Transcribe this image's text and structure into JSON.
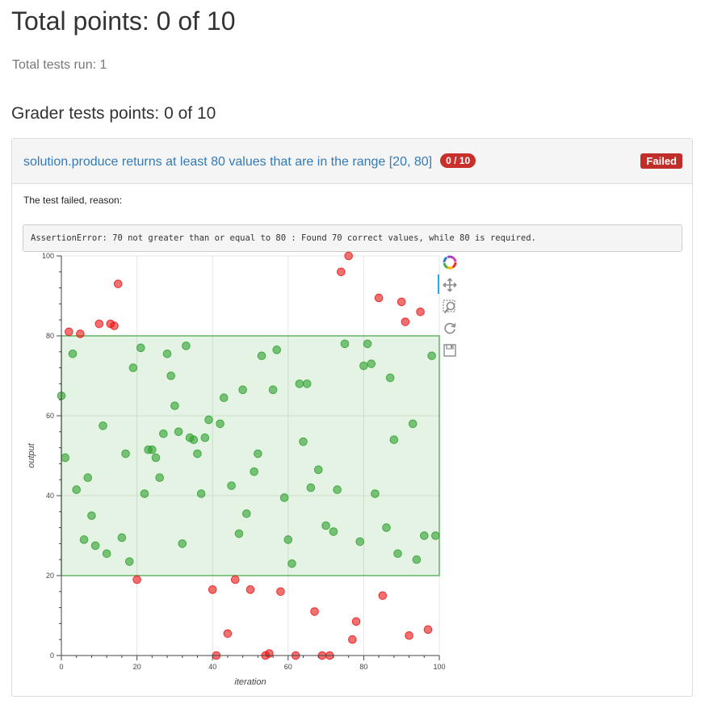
{
  "header": {
    "title": "Total points: 0 of 10",
    "tests_run": "Total tests run: 1",
    "section_title": "Grader tests points: 0 of 10"
  },
  "test": {
    "name": "solution.produce returns at least 80 values that are in the range [20, 80]",
    "score": "0 / 10",
    "status": "Failed",
    "reason_label": "The test failed, reason:",
    "error": "AssertionError: 70 not greater than or equal to 80 : Found 70 correct values, while 80 is required."
  },
  "toolbar": {
    "tools": [
      "bokeh-logo-icon",
      "pan-icon",
      "box-zoom-icon",
      "reset-icon",
      "save-icon"
    ]
  },
  "colors": {
    "in_range": "#2ca02c",
    "out_of_range": "#e81010",
    "band": "#2ca02c",
    "link": "#337ab7",
    "danger": "#c12e2a"
  },
  "chart_data": {
    "type": "scatter",
    "xlabel": "iteration",
    "ylabel": "output",
    "xlim": [
      0,
      100
    ],
    "ylim": [
      0,
      100
    ],
    "x_ticks": [
      0,
      20,
      40,
      60,
      80,
      100
    ],
    "y_ticks": [
      0,
      20,
      40,
      60,
      80,
      100
    ],
    "band": [
      20,
      80
    ],
    "grid": true,
    "points": [
      [
        0,
        65
      ],
      [
        1,
        49.5
      ],
      [
        2,
        81
      ],
      [
        3,
        75.5
      ],
      [
        4,
        41.5
      ],
      [
        5,
        80.5
      ],
      [
        6,
        29
      ],
      [
        7,
        44.5
      ],
      [
        8,
        35
      ],
      [
        9,
        27.5
      ],
      [
        10,
        83
      ],
      [
        11,
        57.5
      ],
      [
        12,
        25.5
      ],
      [
        13,
        83
      ],
      [
        14,
        82.5
      ],
      [
        15,
        93
      ],
      [
        16,
        29.5
      ],
      [
        17,
        50.5
      ],
      [
        18,
        23.5
      ],
      [
        19,
        72
      ],
      [
        20,
        19
      ],
      [
        21,
        77
      ],
      [
        22,
        40.5
      ],
      [
        23,
        51.5
      ],
      [
        24,
        51.5
      ],
      [
        25,
        49.5
      ],
      [
        26,
        44.5
      ],
      [
        27,
        55.5
      ],
      [
        28,
        75.5
      ],
      [
        29,
        70
      ],
      [
        30,
        62.5
      ],
      [
        31,
        56
      ],
      [
        32,
        28
      ],
      [
        33,
        77.5
      ],
      [
        34,
        54.5
      ],
      [
        35,
        54
      ],
      [
        36,
        50.5
      ],
      [
        37,
        40.5
      ],
      [
        38,
        54.5
      ],
      [
        39,
        59
      ],
      [
        40,
        16.5
      ],
      [
        41,
        0
      ],
      [
        42,
        58
      ],
      [
        43,
        64.5
      ],
      [
        44,
        5.5
      ],
      [
        45,
        42.5
      ],
      [
        46,
        19
      ],
      [
        47,
        30.5
      ],
      [
        48,
        66.5
      ],
      [
        49,
        35.5
      ],
      [
        50,
        16.5
      ],
      [
        51,
        46
      ],
      [
        52,
        50.5
      ],
      [
        53,
        75
      ],
      [
        54,
        0
      ],
      [
        55,
        0.5
      ],
      [
        56,
        66.5
      ],
      [
        57,
        76.5
      ],
      [
        58,
        16
      ],
      [
        59,
        39.5
      ],
      [
        60,
        29
      ],
      [
        61,
        23
      ],
      [
        62,
        0
      ],
      [
        63,
        68
      ],
      [
        64,
        53.5
      ],
      [
        65,
        68
      ],
      [
        66,
        42
      ],
      [
        67,
        11
      ],
      [
        68,
        46.5
      ],
      [
        69,
        0
      ],
      [
        70,
        32.5
      ],
      [
        71,
        0
      ],
      [
        72,
        31
      ],
      [
        73,
        41.5
      ],
      [
        74,
        96
      ],
      [
        75,
        78
      ],
      [
        76,
        100
      ],
      [
        77,
        4
      ],
      [
        78,
        8.5
      ],
      [
        79,
        28.5
      ],
      [
        80,
        72.5
      ],
      [
        81,
        78
      ],
      [
        82,
        73
      ],
      [
        83,
        40.5
      ],
      [
        84,
        89.5
      ],
      [
        85,
        15
      ],
      [
        86,
        32
      ],
      [
        87,
        69.5
      ],
      [
        88,
        54
      ],
      [
        89,
        25.5
      ],
      [
        90,
        88.5
      ],
      [
        91,
        83.5
      ],
      [
        92,
        5
      ],
      [
        93,
        58
      ],
      [
        94,
        24
      ],
      [
        95,
        86
      ],
      [
        96,
        30
      ],
      [
        97,
        6.5
      ],
      [
        98,
        75
      ],
      [
        99,
        30
      ]
    ]
  }
}
